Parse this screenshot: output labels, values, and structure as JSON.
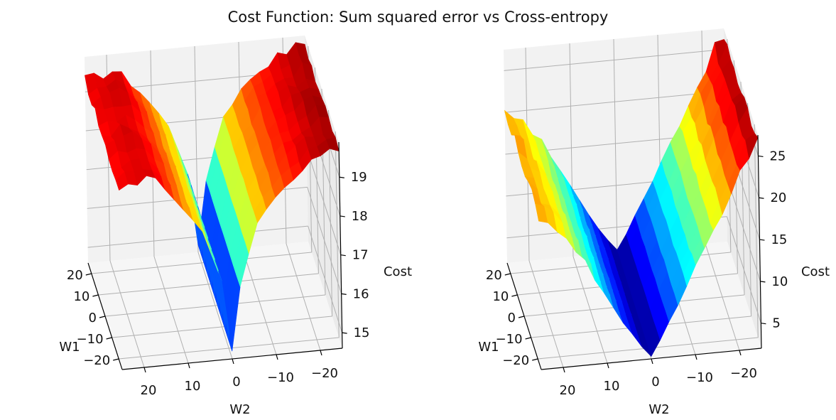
{
  "suptitle": "Cost Function: Sum squared error vs Cross-entropy",
  "chart_data": [
    {
      "type": "surface",
      "colormap": "jet",
      "title": "",
      "xlabel": "W1",
      "ylabel": "W2",
      "zlabel": "Cost",
      "x_ticks": [
        -20,
        -10,
        0,
        10,
        20
      ],
      "x_tick_labels": [
        "−20",
        "−10",
        "0",
        "10",
        "20"
      ],
      "y_ticks": [
        20,
        10,
        0,
        -10,
        -20
      ],
      "y_tick_labels": [
        "20",
        "10",
        "0",
        "−10",
        "−20"
      ],
      "z_ticks": [
        15,
        16,
        17,
        18,
        19
      ],
      "z_tick_labels": [
        "15",
        "16",
        "17",
        "18",
        "19"
      ],
      "zlim": [
        14.6,
        19.9
      ],
      "grid": true,
      "surface_profile": [
        {
          "w2": 24,
          "cost": 19.3
        },
        {
          "w2": 18,
          "cost": 19.5
        },
        {
          "w2": 12,
          "cost": 18.8
        },
        {
          "w2": 6,
          "cost": 17.9
        },
        {
          "w2": 2,
          "cost": 16.6
        },
        {
          "w2": 0,
          "cost": 14.8
        },
        {
          "w2": -2,
          "cost": 16.4
        },
        {
          "w2": -6,
          "cost": 18.0
        },
        {
          "w2": -12,
          "cost": 18.9
        },
        {
          "w2": -18,
          "cost": 19.4
        },
        {
          "w2": -24,
          "cost": 19.7
        }
      ]
    },
    {
      "type": "surface",
      "colormap": "jet",
      "title": "",
      "xlabel": "W1",
      "ylabel": "W2",
      "zlabel": "Cost",
      "x_ticks": [
        -20,
        -10,
        0,
        10,
        20
      ],
      "x_tick_labels": [
        "−20",
        "−10",
        "0",
        "10",
        "20"
      ],
      "y_ticks": [
        20,
        10,
        0,
        -10,
        -20
      ],
      "y_tick_labels": [
        "20",
        "10",
        "0",
        "−10",
        "−20"
      ],
      "z_ticks": [
        5,
        10,
        15,
        20,
        25
      ],
      "z_tick_labels": [
        "5",
        "10",
        "15",
        "20",
        "25"
      ],
      "zlim": [
        2,
        27.5
      ],
      "grid": true,
      "surface_profile": [
        {
          "w2": 24,
          "cost": 20.5
        },
        {
          "w2": 18,
          "cost": 17.0
        },
        {
          "w2": 12,
          "cost": 12.0
        },
        {
          "w2": 6,
          "cost": 6.5
        },
        {
          "w2": 2,
          "cost": 3.5
        },
        {
          "w2": 0,
          "cost": 2.3
        },
        {
          "w2": -2,
          "cost": 4.0
        },
        {
          "w2": -6,
          "cost": 8.0
        },
        {
          "w2": -12,
          "cost": 14.0
        },
        {
          "w2": -18,
          "cost": 20.0
        },
        {
          "w2": -24,
          "cost": 26.5
        }
      ]
    }
  ]
}
